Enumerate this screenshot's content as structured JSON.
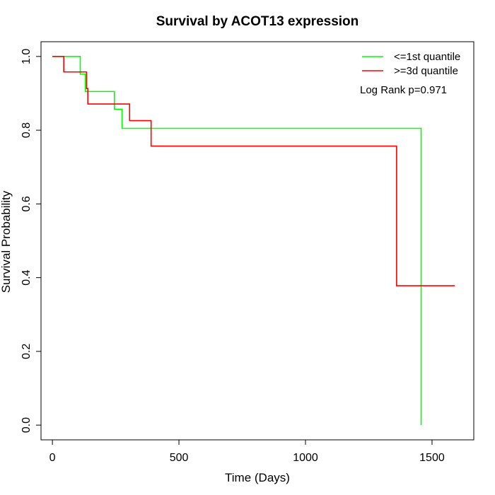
{
  "chart_data": {
    "type": "line",
    "title": "Survival by ACOT13 expression",
    "xlabel": "Time (Days)",
    "ylabel": "Survival Probability",
    "xlim": [
      -45,
      1665
    ],
    "ylim": [
      -0.04,
      1.04
    ],
    "x_ticks": [
      0,
      500,
      1000,
      1500
    ],
    "x_tick_labels": [
      "0",
      "500",
      "1000",
      "1500"
    ],
    "y_ticks": [
      0.0,
      0.2,
      0.4,
      0.6,
      0.8,
      1.0
    ],
    "y_tick_labels": [
      "0.0",
      "0.2",
      "0.4",
      "0.6",
      "0.8",
      "1.0"
    ],
    "grid": false,
    "legend_position": "top-right",
    "annotation": "Log Rank p=0.971",
    "series": [
      {
        "name": "<=1st quantile",
        "color": "#00ff00",
        "steps": [
          [
            0,
            1.0
          ],
          [
            110,
            0.952
          ],
          [
            130,
            0.905
          ],
          [
            245,
            0.857
          ],
          [
            275,
            0.805
          ],
          [
            1457,
            0.805
          ],
          [
            1457,
            0.0
          ]
        ]
      },
      {
        "name": ">=3d quantile",
        "color": "#ff0000",
        "steps": [
          [
            0,
            1.0
          ],
          [
            45,
            0.958
          ],
          [
            135,
            0.913
          ],
          [
            140,
            0.871
          ],
          [
            305,
            0.826
          ],
          [
            390,
            0.757
          ],
          [
            1360,
            0.757
          ],
          [
            1360,
            0.378
          ],
          [
            1590,
            0.378
          ]
        ]
      }
    ]
  }
}
